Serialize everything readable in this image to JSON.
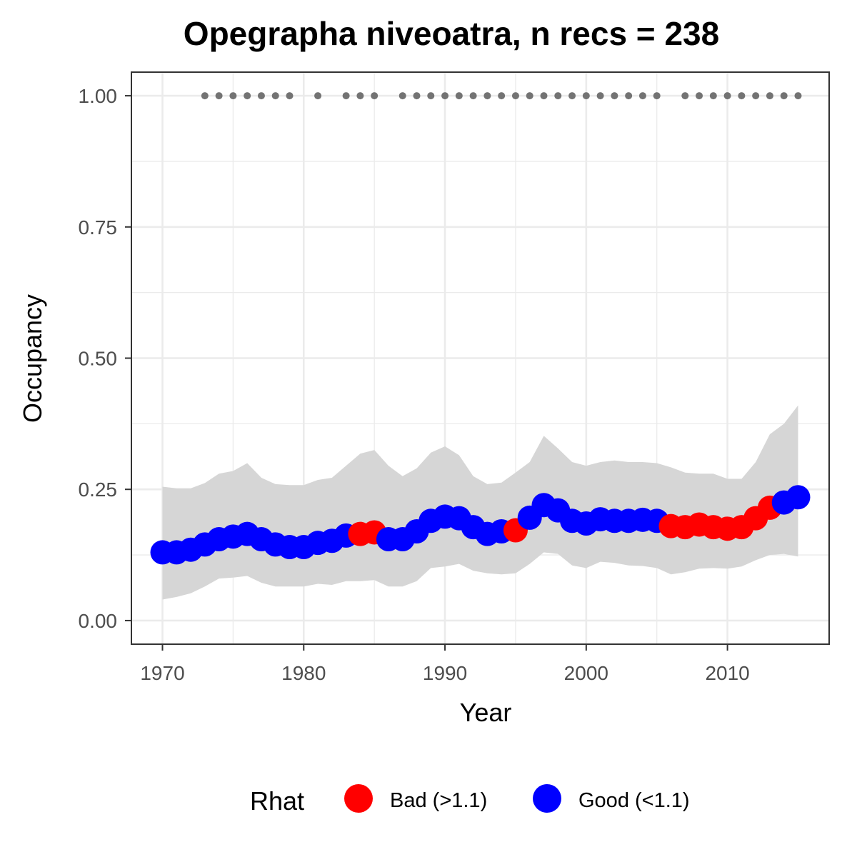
{
  "chart_data": {
    "type": "line",
    "title": "Opegrapha niveoatra, n recs = 238",
    "xlabel": "Year",
    "ylabel": "Occupancy",
    "xlim": [
      1967.8,
      2017.2
    ],
    "ylim": [
      -0.045,
      1.045
    ],
    "x_ticks": [
      "1970",
      "1980",
      "1990",
      "2000",
      "2010"
    ],
    "x_tick_values": [
      1970,
      1980,
      1990,
      2000,
      2010
    ],
    "y_ticks": [
      "0.00",
      "0.25",
      "0.50",
      "0.75",
      "1.00"
    ],
    "y_tick_values": [
      0,
      0.25,
      0.5,
      0.75,
      1
    ],
    "grid": true,
    "legend": {
      "title": "Rhat",
      "position": "bottom",
      "entries": [
        {
          "label": "Bad (>1.1)",
          "color": "#ff0000"
        },
        {
          "label": "Good (<1.1)",
          "color": "#0000ff"
        }
      ]
    },
    "colors": {
      "bad": "#ff0000",
      "good": "#0000ff",
      "ribbon": "#d6d6d6",
      "records": "#737373"
    },
    "series": [
      {
        "x": [
          1970,
          1971,
          1972,
          1973,
          1974,
          1975,
          1976,
          1977,
          1978,
          1979,
          1980,
          1981,
          1982,
          1983,
          1984,
          1985,
          1986,
          1987,
          1988,
          1989,
          1990,
          1991,
          1992,
          1993,
          1994,
          1995,
          1996,
          1997,
          1998,
          1999,
          2000,
          2001,
          2002,
          2003,
          2004,
          2005,
          2006,
          2007,
          2008,
          2009,
          2010,
          2011,
          2012,
          2013,
          2014,
          2015
        ],
        "values": [
          0.13,
          0.13,
          0.135,
          0.145,
          0.155,
          0.16,
          0.165,
          0.155,
          0.145,
          0.14,
          0.14,
          0.148,
          0.152,
          0.162,
          0.165,
          0.168,
          0.155,
          0.155,
          0.17,
          0.19,
          0.198,
          0.195,
          0.178,
          0.165,
          0.17,
          0.172,
          0.196,
          0.22,
          0.21,
          0.19,
          0.185,
          0.193,
          0.19,
          0.19,
          0.192,
          0.19,
          0.18,
          0.178,
          0.183,
          0.178,
          0.175,
          0.178,
          0.195,
          0.215,
          0.225,
          0.235
        ],
        "rhat": [
          "good",
          "good",
          "good",
          "good",
          "good",
          "good",
          "good",
          "good",
          "good",
          "good",
          "good",
          "good",
          "good",
          "good",
          "bad",
          "bad",
          "good",
          "good",
          "good",
          "good",
          "good",
          "good",
          "good",
          "good",
          "good",
          "bad",
          "good",
          "good",
          "good",
          "good",
          "good",
          "good",
          "good",
          "good",
          "good",
          "good",
          "bad",
          "bad",
          "bad",
          "bad",
          "bad",
          "bad",
          "bad",
          "bad",
          "good",
          "good"
        ],
        "lower": [
          0.04,
          0.045,
          0.052,
          0.065,
          0.08,
          0.082,
          0.085,
          0.072,
          0.065,
          0.065,
          0.065,
          0.07,
          0.068,
          0.075,
          0.075,
          0.077,
          0.065,
          0.065,
          0.075,
          0.1,
          0.103,
          0.108,
          0.095,
          0.09,
          0.088,
          0.09,
          0.108,
          0.13,
          0.127,
          0.105,
          0.1,
          0.112,
          0.11,
          0.105,
          0.104,
          0.1,
          0.088,
          0.092,
          0.099,
          0.1,
          0.099,
          0.103,
          0.115,
          0.125,
          0.127,
          0.122
        ],
        "upper": [
          0.255,
          0.252,
          0.252,
          0.262,
          0.28,
          0.285,
          0.3,
          0.272,
          0.26,
          0.258,
          0.258,
          0.268,
          0.272,
          0.295,
          0.318,
          0.325,
          0.295,
          0.275,
          0.29,
          0.32,
          0.332,
          0.315,
          0.275,
          0.26,
          0.263,
          0.282,
          0.302,
          0.352,
          0.328,
          0.302,
          0.295,
          0.302,
          0.305,
          0.302,
          0.302,
          0.3,
          0.292,
          0.282,
          0.28,
          0.28,
          0.27,
          0.27,
          0.302,
          0.355,
          0.375,
          0.41
        ]
      }
    ],
    "record_years": [
      1973,
      1974,
      1975,
      1976,
      1977,
      1978,
      1979,
      1981,
      1983,
      1984,
      1985,
      1987,
      1988,
      1989,
      1990,
      1991,
      1992,
      1993,
      1994,
      1995,
      1996,
      1997,
      1998,
      1999,
      2000,
      2001,
      2002,
      2003,
      2004,
      2005,
      2007,
      2008,
      2009,
      2010,
      2011,
      2012,
      2013,
      2014,
      2015
    ],
    "record_value": 1.0
  }
}
